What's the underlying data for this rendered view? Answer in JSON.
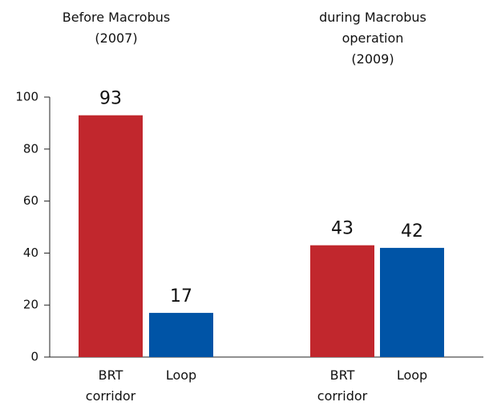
{
  "chart_data": {
    "type": "bar",
    "group_titles": [
      "Before Macrobus\n(2007)",
      "during Macrobus\noperation\n(2009)"
    ],
    "categories": [
      "BRT\ncorridor",
      "Loop",
      "BRT\ncorridor",
      "Loop"
    ],
    "values": [
      93,
      17,
      43,
      42
    ],
    "colors": [
      "#c1272d",
      "#0054a6",
      "#c1272d",
      "#0054a6"
    ],
    "ylim": [
      0,
      100
    ],
    "yticks": [
      0,
      20,
      40,
      60,
      80,
      100
    ]
  }
}
